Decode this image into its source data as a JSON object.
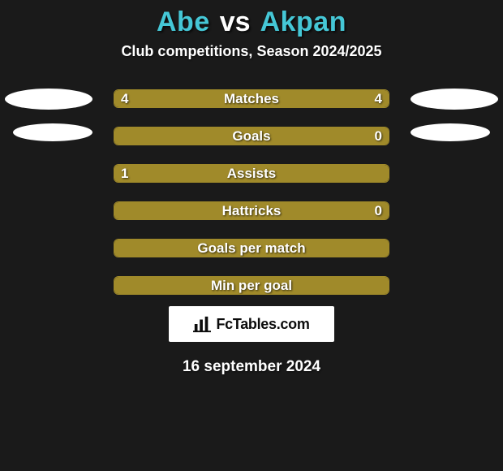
{
  "title": {
    "player_a": "Abe",
    "vs": "vs",
    "player_b": "Akpan",
    "title_color": "#45c7d6",
    "title_fontsize": 34
  },
  "subtitle": "Club competitions, Season 2024/2025",
  "colors": {
    "background": "#1a1a1a",
    "bar_border": "#a08a2a",
    "bar_fill": "#a08a2a",
    "text": "#ffffff",
    "ellipse": "#ffffff"
  },
  "bar": {
    "track_width": 340,
    "track_height": 23,
    "border_radius": 6,
    "label_fontsize": 17
  },
  "stats": [
    {
      "label": "Matches",
      "left_val": "4",
      "right_val": "4",
      "left_fill_pct": 50,
      "right_fill_pct": 50,
      "show_left_ellipse": true,
      "show_right_ellipse": true
    },
    {
      "label": "Goals",
      "left_val": "",
      "right_val": "0",
      "left_fill_pct": 100,
      "right_fill_pct": 0,
      "show_left_ellipse": true,
      "show_right_ellipse": true
    },
    {
      "label": "Assists",
      "left_val": "1",
      "right_val": "",
      "left_fill_pct": 0,
      "right_fill_pct": 100,
      "show_left_ellipse": false,
      "show_right_ellipse": false
    },
    {
      "label": "Hattricks",
      "left_val": "",
      "right_val": "0",
      "left_fill_pct": 100,
      "right_fill_pct": 0,
      "show_left_ellipse": false,
      "show_right_ellipse": false
    },
    {
      "label": "Goals per match",
      "left_val": "",
      "right_val": "",
      "left_fill_pct": 100,
      "right_fill_pct": 0,
      "show_left_ellipse": false,
      "show_right_ellipse": false
    },
    {
      "label": "Min per goal",
      "left_val": "",
      "right_val": "",
      "left_fill_pct": 100,
      "right_fill_pct": 0,
      "show_left_ellipse": false,
      "show_right_ellipse": false
    }
  ],
  "footer": {
    "logo_text": "FcTables.com",
    "date": "16 september 2024"
  }
}
